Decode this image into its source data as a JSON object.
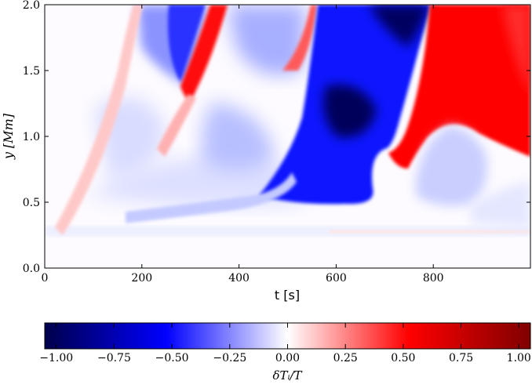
{
  "chart_data": {
    "type": "heatmap",
    "xlabel": "t [s]",
    "ylabel": "y [Mm]",
    "x_ticks": [
      "0",
      "200",
      "400",
      "600",
      "800"
    ],
    "x_tick_values": [
      0,
      200,
      400,
      600,
      800
    ],
    "y_ticks": [
      "0.0",
      "0.5",
      "1.0",
      "1.5",
      "2.0"
    ],
    "y_tick_values": [
      0.0,
      0.5,
      1.0,
      1.5,
      2.0
    ],
    "xlim": [
      0,
      1000
    ],
    "ylim": [
      0.0,
      2.0
    ],
    "colorbar": {
      "label": "δTᵢ/T",
      "ticks": [
        "−1.00",
        "−0.75",
        "−0.50",
        "−0.25",
        "0.00",
        "0.25",
        "0.50",
        "0.75",
        "1.00"
      ],
      "tick_values": [
        -1.0,
        -0.75,
        -0.5,
        -0.25,
        0.0,
        0.25,
        0.5,
        0.75,
        1.0
      ],
      "range": [
        -1.05,
        1.05
      ],
      "colormap": [
        "#00004c",
        "#0000ff",
        "#ffffff",
        "#ff0000",
        "#800000"
      ]
    },
    "regions": [
      {
        "name": "leading front",
        "t_start": 20,
        "y_start": 0.32,
        "t_end": 185,
        "y_end": 2.0,
        "value": 0.12
      },
      {
        "name": "second front",
        "t_start": 30,
        "y_start": 0.32,
        "t_end": 340,
        "y_end": 2.0,
        "value": 0.6
      },
      {
        "name": "third front",
        "t_start": 40,
        "y_start": 0.32,
        "t_end": 555,
        "y_end": 2.0,
        "value": 0.55
      },
      {
        "name": "deep cooling region",
        "t_center": 610,
        "y_center": 1.05,
        "value": -1.0
      },
      {
        "name": "strong heating region",
        "t_center": 880,
        "y_center": 1.6,
        "value": 0.9
      },
      {
        "name": "secondary cool patch",
        "t_center": 820,
        "y_center": 0.85,
        "value": -0.3
      },
      {
        "name": "early cool patch upper",
        "t_center": 230,
        "y_center": 1.7,
        "value": -0.45
      },
      {
        "name": "early cool patch lower",
        "t_center": 390,
        "y_center": 0.95,
        "value": -0.35
      }
    ],
    "grid": false
  }
}
